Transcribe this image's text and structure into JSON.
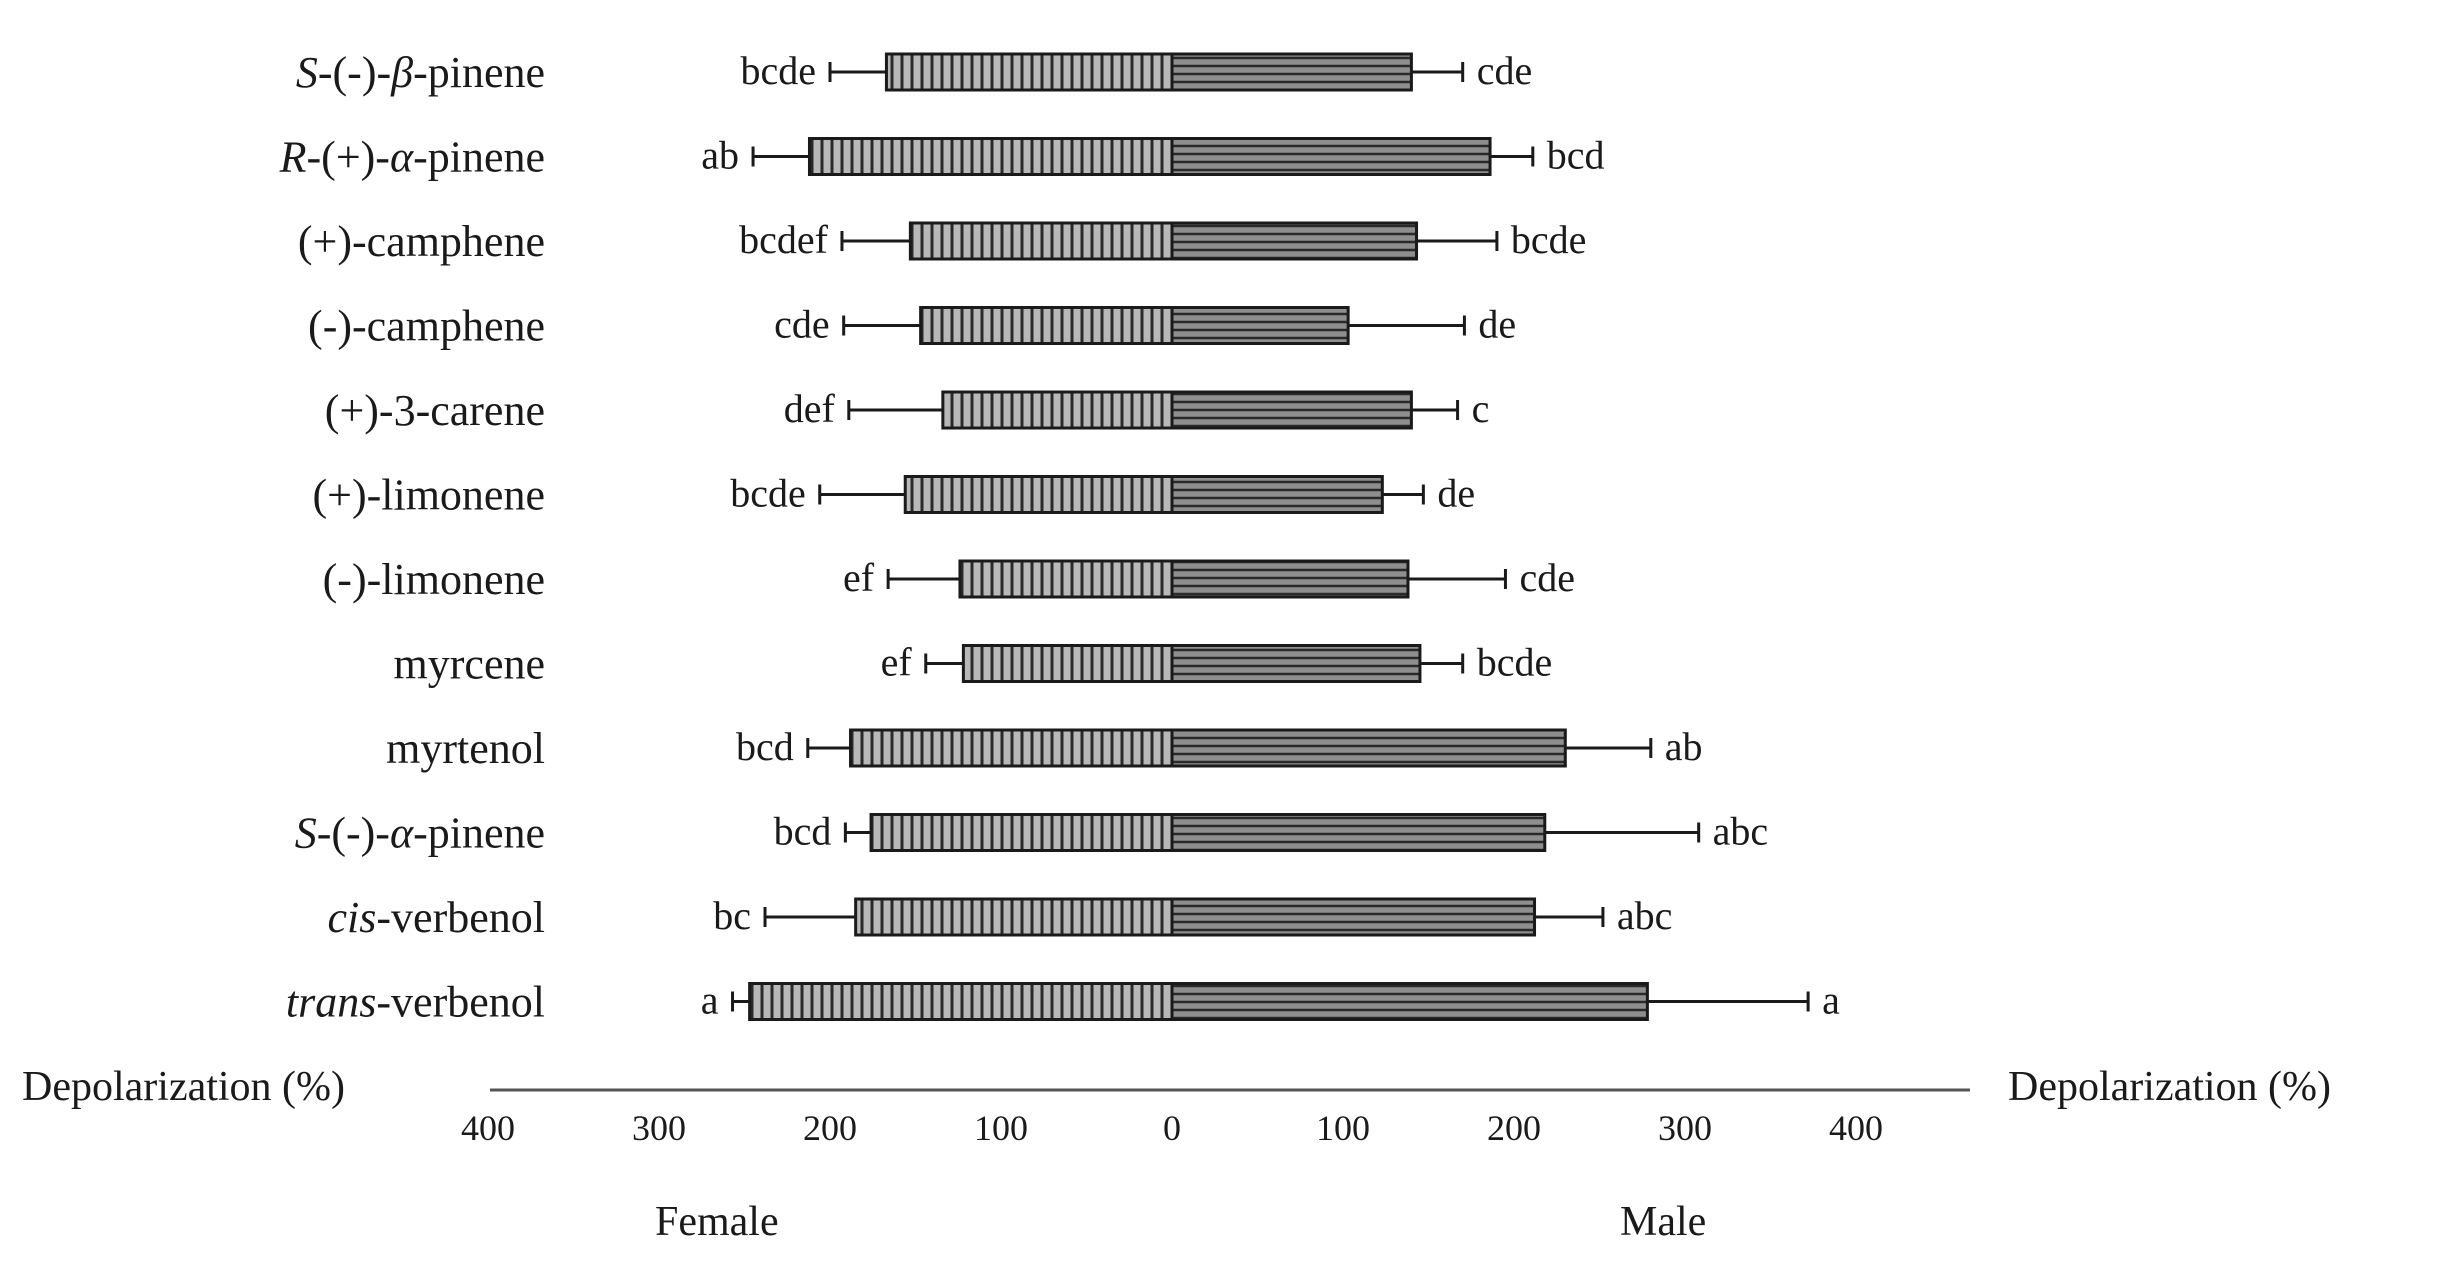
{
  "chart_data": {
    "type": "bar",
    "orientation": "horizontal",
    "layout": "back-to-back",
    "title": "",
    "xlabel_left": "Depolarization (%)",
    "xlabel_right": "Depolarization (%)",
    "side_labels": {
      "left": "Female",
      "right": "Male"
    },
    "x_ticks": [
      "400",
      "300",
      "200",
      "100",
      "0",
      "100",
      "200",
      "300",
      "400"
    ],
    "xlim_each_side": [
      0,
      400
    ],
    "grid": false,
    "colors": {
      "bar_fill": "#9a9a9a",
      "bar_stroke": "#1a1a1a",
      "error_bar": "#1a1a1a"
    },
    "categories": [
      {
        "prefix": "S",
        "prefix_italic": true,
        "mid": "-(-)-",
        "greek": "β",
        "suffix": "-pinene"
      },
      {
        "prefix": "R",
        "prefix_italic": true,
        "mid": "-(+)-",
        "greek": "α",
        "suffix": "-pinene"
      },
      {
        "prefix": "",
        "prefix_italic": false,
        "mid": "(+)-camphene",
        "greek": "",
        "suffix": ""
      },
      {
        "prefix": "",
        "prefix_italic": false,
        "mid": "(-)-camphene",
        "greek": "",
        "suffix": ""
      },
      {
        "prefix": "",
        "prefix_italic": false,
        "mid": "(+)-3-carene",
        "greek": "",
        "suffix": ""
      },
      {
        "prefix": "",
        "prefix_italic": false,
        "mid": "(+)-limonene",
        "greek": "",
        "suffix": ""
      },
      {
        "prefix": "",
        "prefix_italic": false,
        "mid": "(-)-limonene",
        "greek": "",
        "suffix": ""
      },
      {
        "prefix": "",
        "prefix_italic": false,
        "mid": "myrcene",
        "greek": "",
        "suffix": ""
      },
      {
        "prefix": "",
        "prefix_italic": false,
        "mid": "myrtenol",
        "greek": "",
        "suffix": ""
      },
      {
        "prefix": "S",
        "prefix_italic": true,
        "mid": "-(-)-",
        "greek": "α",
        "suffix": "-pinene"
      },
      {
        "prefix": "cis",
        "prefix_italic": true,
        "mid": "-verbenol",
        "greek": "",
        "suffix": ""
      },
      {
        "prefix": "trans",
        "prefix_italic": true,
        "mid": "-verbenol",
        "greek": "",
        "suffix": ""
      }
    ],
    "series": [
      {
        "side": "left",
        "values": [
          167,
          212,
          153,
          147,
          134,
          156,
          124,
          122,
          188,
          176,
          185,
          247
        ],
        "errors": [
          33,
          33,
          40,
          45,
          55,
          50,
          42,
          22,
          25,
          15,
          53,
          10
        ],
        "significance": [
          "bcde",
          "ab",
          "bcdef",
          "cde",
          "def",
          "bcde",
          "ef",
          "ef",
          "bcd",
          "bcd",
          "bc",
          "a"
        ]
      },
      {
        "side": "right",
        "values": [
          140,
          186,
          143,
          103,
          140,
          123,
          138,
          145,
          230,
          218,
          212,
          278
        ],
        "errors": [
          30,
          25,
          47,
          68,
          27,
          24,
          57,
          25,
          50,
          90,
          40,
          94
        ],
        "significance": [
          "cde",
          "bcd",
          "bcde",
          "de",
          "c",
          "de",
          "cde",
          "bcde",
          "ab",
          "abc",
          "abc",
          "a"
        ]
      }
    ]
  }
}
